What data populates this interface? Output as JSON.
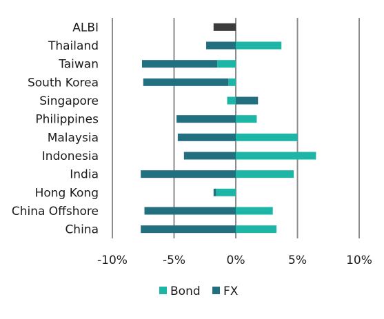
{
  "chart_data": {
    "type": "bar",
    "orientation": "horizontal",
    "stacked": true,
    "categories": [
      "ALBI",
      "Thailand",
      "Taiwan",
      "South Korea",
      "Singapore",
      "Philippines",
      "Malaysia",
      "Indonesia",
      "India",
      "Hong Kong",
      "China Offshore",
      "China"
    ],
    "series": [
      {
        "name": "Bond",
        "color": "#1db5a6",
        "values": [
          null,
          3.7,
          -1.5,
          -0.6,
          -0.7,
          1.7,
          5.0,
          6.5,
          4.7,
          -1.6,
          3.0,
          3.3
        ]
      },
      {
        "name": "FX",
        "color": "#226f80",
        "values": [
          null,
          -2.4,
          -6.1,
          -6.9,
          1.8,
          -4.8,
          -4.7,
          -4.2,
          -7.7,
          -0.2,
          -7.4,
          -7.7
        ]
      }
    ],
    "total_series": {
      "color": "#3c3c3c",
      "values": [
        -1.8,
        null,
        null,
        null,
        null,
        null,
        null,
        null,
        null,
        null,
        null,
        null
      ]
    },
    "xlim": [
      -10,
      10
    ],
    "xticks": [
      -10,
      -5,
      0,
      5,
      10
    ],
    "xtick_labels": [
      "-10%",
      "-5%",
      "0%",
      "5%",
      "10%"
    ],
    "grid": "vertical",
    "legend_position": "bottom",
    "title": "",
    "xlabel": "",
    "ylabel": ""
  }
}
